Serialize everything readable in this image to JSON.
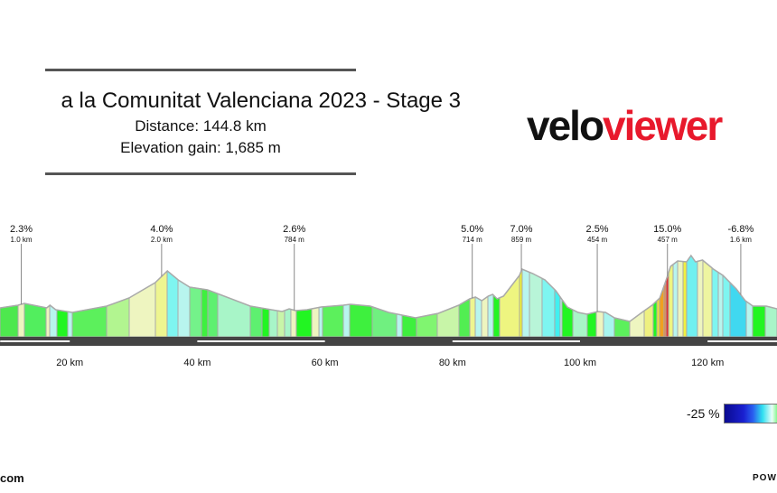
{
  "header": {
    "title": "a la Comunitat Valenciana 2023 - Stage 3",
    "distance": "Distance: 144.8 km",
    "elevation_gain": "Elevation gain: 1,685 m"
  },
  "logo": {
    "part1": "velo",
    "part2": "viewer",
    "colors": {
      "velo": "#111111",
      "viewer": "#e8192c"
    }
  },
  "legend": {
    "min_label": "-25 %"
  },
  "footer": {
    "left": "com",
    "right": "POWE"
  },
  "chart_data": {
    "type": "area",
    "title": "",
    "xlabel": "",
    "ylabel": "",
    "x_unit": "km",
    "xlim": [
      9.1,
      130.9
    ],
    "x_ticks": [
      20,
      40,
      60,
      80,
      100,
      120
    ],
    "x_tick_labels": [
      "20 km",
      "40 km",
      "60 km",
      "80 km",
      "100 km",
      "120 km"
    ],
    "profile": {
      "km": [
        9.1,
        11.9,
        12.9,
        16.4,
        16.9,
        17.8,
        20.4,
        25.8,
        29.3,
        33.4,
        35.3,
        37.0,
        38.8,
        41.6,
        43.1,
        48.3,
        51.6,
        53.3,
        54.4,
        55.4,
        57.2,
        59.4,
        62.9,
        64.0,
        67.1,
        70.0,
        74.2,
        77.8,
        81.0,
        82.7,
        83.6,
        84.6,
        85.6,
        86.3,
        87.0,
        88.0,
        90.5,
        90.9,
        92.6,
        94.5,
        96.2,
        98.0,
        99.7,
        101.1,
        102.8,
        104.0,
        105.4,
        107.8,
        109.9,
        111.3,
        112.5,
        113.5,
        114.2,
        115.3,
        116.7,
        117.4,
        118.1,
        119.2,
        120.9,
        122.4,
        124.5,
        125.9,
        127.1,
        129.2,
        130.9
      ],
      "elevation_m": [
        156,
        168,
        176,
        156,
        168,
        148,
        136,
        164,
        200,
        268,
        320,
        280,
        248,
        236,
        220,
        164,
        148,
        140,
        152,
        144,
        148,
        160,
        168,
        172,
        164,
        136,
        112,
        132,
        168,
        196,
        204,
        188,
        208,
        216,
        196,
        208,
        300,
        328,
        308,
        280,
        232,
        160,
        136,
        128,
        140,
        136,
        112,
        96,
        140,
        168,
        200,
        280,
        340,
        364,
        360,
        388,
        360,
        368,
        328,
        300,
        240,
        188,
        164,
        164,
        152
      ]
    },
    "gradient_segments": {
      "boundaries_km": [
        9.07,
        11.9,
        12.89,
        16.29,
        16.86,
        17.99,
        19.69,
        20.4,
        25.78,
        29.32,
        33.43,
        35.27,
        36.97,
        38.81,
        40.65,
        41.64,
        43.2,
        48.3,
        50.14,
        51.27,
        52.55,
        53.68,
        54.67,
        55.52,
        57.93,
        59.07,
        59.63,
        62.89,
        63.88,
        67.42,
        71.25,
        72.1,
        74.36,
        77.62,
        81.02,
        82.72,
        83.57,
        84.56,
        85.55,
        86.4,
        87.39,
        90.51,
        90.93,
        92.07,
        94.05,
        96.03,
        96.88,
        97.17,
        98.87,
        101.13,
        102.55,
        103.68,
        105.38,
        107.79,
        110.06,
        111.47,
        112.04,
        112.46,
        113.17,
        113.46,
        113.88,
        114.59,
        115.3,
        116.15,
        116.71,
        118.41,
        119.26,
        120.68,
        121.67,
        122.38,
        123.51,
        126.06,
        127.05,
        129.04,
        130.88
      ],
      "colors": [
        "#4ee84e",
        "#eef5c0",
        "#52ee5e",
        "#eef5c0",
        "#b8f5ee",
        "#22f522",
        "#b8f5ee",
        "#5cf05c",
        "#b2f590",
        "#eef5c0",
        "#eef590",
        "#7ef5f0",
        "#b8f5ee",
        "#74f28a",
        "#3ef03e",
        "#5ef070",
        "#a8f5c8",
        "#5ef070",
        "#22f522",
        "#a8f5c8",
        "#c8f5a8",
        "#a8f5c8",
        "#eef5c0",
        "#22f522",
        "#eef5c0",
        "#b8f5ee",
        "#5cf05c",
        "#b8f5ee",
        "#3ef03e",
        "#70f080",
        "#b8f5ee",
        "#3ef03e",
        "#80f570",
        "#c8f5a8",
        "#52ee52",
        "#eef590",
        "#b8f5ee",
        "#eef5c0",
        "#b8f5ee",
        "#22f522",
        "#eef580",
        "#f0f030",
        "#b8f5ee",
        "#b8f5d8",
        "#7ef5f0",
        "#40f0f0",
        "#b8f5ee",
        "#22f522",
        "#a8f5c8",
        "#22f522",
        "#eef5c0",
        "#a8f5ee",
        "#5cf05c",
        "#eef5c0",
        "#eef080",
        "#22f522",
        "#f0e030",
        "#f0a020",
        "#f08030",
        "#e03030",
        "#eef580",
        "#b8f5ee",
        "#eef5c0",
        "#f0f040",
        "#70f0f0",
        "#eef5c0",
        "#eef5a0",
        "#7ef5f0",
        "#b8f5ee",
        "#7ef5f0",
        "#40d8f0",
        "#b8f5ee",
        "#22f522",
        "#a8f5c8"
      ]
    },
    "annotations": [
      {
        "km": 12.4,
        "gradient": "2.3%",
        "length": "1.0 km"
      },
      {
        "km": 34.4,
        "gradient": "4.0%",
        "length": "2.0 km"
      },
      {
        "km": 55.2,
        "gradient": "2.6%",
        "length": "784 m"
      },
      {
        "km": 83.1,
        "gradient": "5.0%",
        "length": "714 m"
      },
      {
        "km": 90.8,
        "gradient": "7.0%",
        "length": "859 m"
      },
      {
        "km": 102.7,
        "gradient": "2.5%",
        "length": "454 m"
      },
      {
        "km": 113.7,
        "gradient": "15.0%",
        "length": "457 m"
      },
      {
        "km": 125.2,
        "gradient": "-6.8%",
        "length": "1.6 km"
      }
    ],
    "legend": {
      "placement": "bottom-right",
      "min": -25,
      "min_label": "-25 %"
    },
    "grid": false
  }
}
